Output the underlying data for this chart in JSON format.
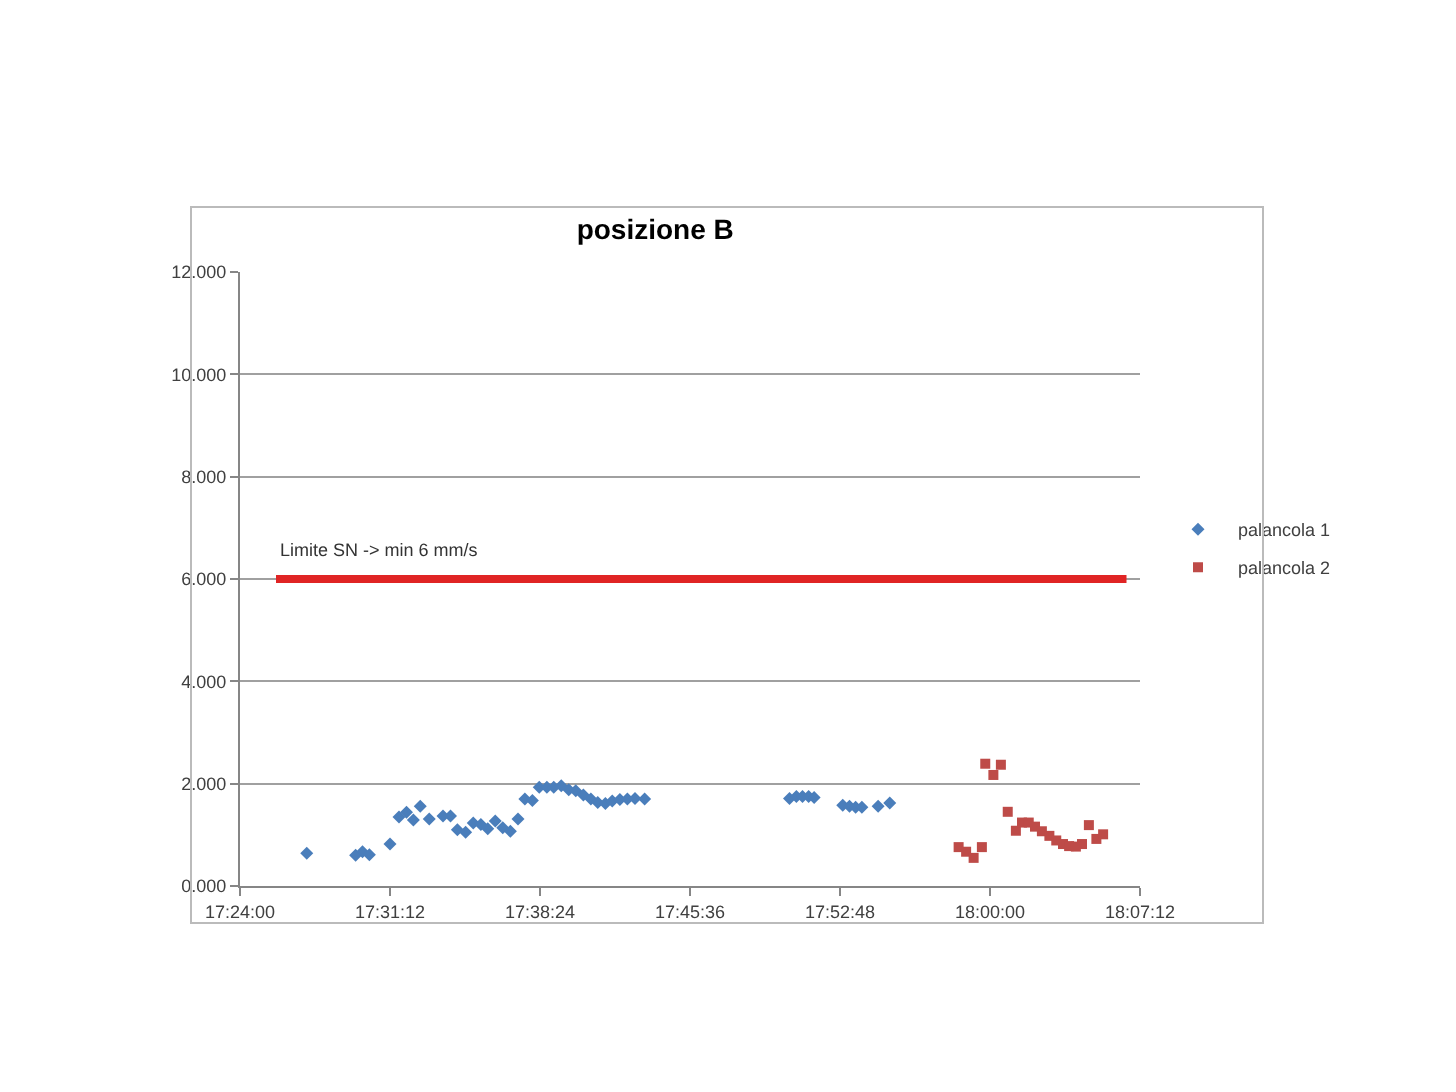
{
  "chart_data": {
    "type": "scatter",
    "title": "posizione B",
    "xlim": [
      17.4,
      18.12
    ],
    "xticks": [
      {
        "value": 17.4,
        "label": "17:24:00"
      },
      {
        "value": 17.52,
        "label": "17:31:12"
      },
      {
        "value": 17.64,
        "label": "17:38:24"
      },
      {
        "value": 17.76,
        "label": "17:45:36"
      },
      {
        "value": 17.88,
        "label": "17:52:48"
      },
      {
        "value": 18.0,
        "label": "18:00:00"
      },
      {
        "value": 18.12,
        "label": "18:07:12"
      }
    ],
    "ylim": [
      0,
      12
    ],
    "yticks": [
      {
        "value": 0,
        "label": "0.000"
      },
      {
        "value": 2,
        "label": "2.000"
      },
      {
        "value": 4,
        "label": "4.000"
      },
      {
        "value": 6,
        "label": "6.000"
      },
      {
        "value": 8,
        "label": "8.000"
      },
      {
        "value": 10,
        "label": "10.000"
      },
      {
        "value": 12,
        "label": "12.000"
      }
    ],
    "grid": "y",
    "legend": "right",
    "ref_lines": [
      {
        "axis": "y",
        "value": 6,
        "label": "Limite SN -> min 6 mm/s",
        "color": "#e02424"
      }
    ],
    "series": [
      {
        "name": "palancola 1",
        "color": "#4a7ebb",
        "marker": "diamond",
        "x": [
          17.4534,
          17.4925,
          17.498,
          17.5035,
          17.52,
          17.5272,
          17.5332,
          17.5387,
          17.5442,
          17.5514,
          17.5624,
          17.5684,
          17.5739,
          17.5805,
          17.5866,
          17.5927,
          17.5982,
          17.6042,
          17.6102,
          17.6163,
          17.6224,
          17.6279,
          17.6339,
          17.6394,
          17.6455,
          17.651,
          17.657,
          17.663,
          17.6686,
          17.6747,
          17.6807,
          17.6862,
          17.6923,
          17.6978,
          17.7039,
          17.7099,
          17.716,
          17.7237,
          17.8396,
          17.8451,
          17.85,
          17.8549,
          17.8593,
          17.8822,
          17.8876,
          17.8925,
          17.8975,
          17.9105,
          17.9198
        ],
        "values": [
          0.64,
          0.6,
          0.67,
          0.61,
          0.82,
          1.35,
          1.44,
          1.29,
          1.56,
          1.31,
          1.37,
          1.37,
          1.1,
          1.05,
          1.23,
          1.2,
          1.12,
          1.27,
          1.14,
          1.07,
          1.31,
          1.7,
          1.67,
          1.93,
          1.93,
          1.93,
          1.96,
          1.88,
          1.86,
          1.78,
          1.7,
          1.63,
          1.61,
          1.66,
          1.69,
          1.7,
          1.71,
          1.7,
          1.71,
          1.75,
          1.75,
          1.75,
          1.73,
          1.58,
          1.56,
          1.54,
          1.54,
          1.56,
          1.62
        ]
      },
      {
        "name": "palancola 2",
        "color": "#be4b48",
        "marker": "square",
        "x": [
          17.9749,
          17.9809,
          17.9869,
          17.9935,
          17.9962,
          18.0027,
          18.0087,
          18.0142,
          18.0207,
          18.0256,
          18.031,
          18.036,
          18.0415,
          18.0475,
          18.053,
          18.0584,
          18.0633,
          18.0687,
          18.0736,
          18.0791,
          18.0851,
          18.0905
        ],
        "values": [
          0.76,
          0.67,
          0.55,
          0.76,
          2.39,
          2.17,
          2.37,
          1.45,
          1.08,
          1.24,
          1.24,
          1.16,
          1.07,
          0.98,
          0.89,
          0.82,
          0.78,
          0.77,
          0.82,
          1.19,
          0.92,
          1.01
        ]
      }
    ]
  }
}
